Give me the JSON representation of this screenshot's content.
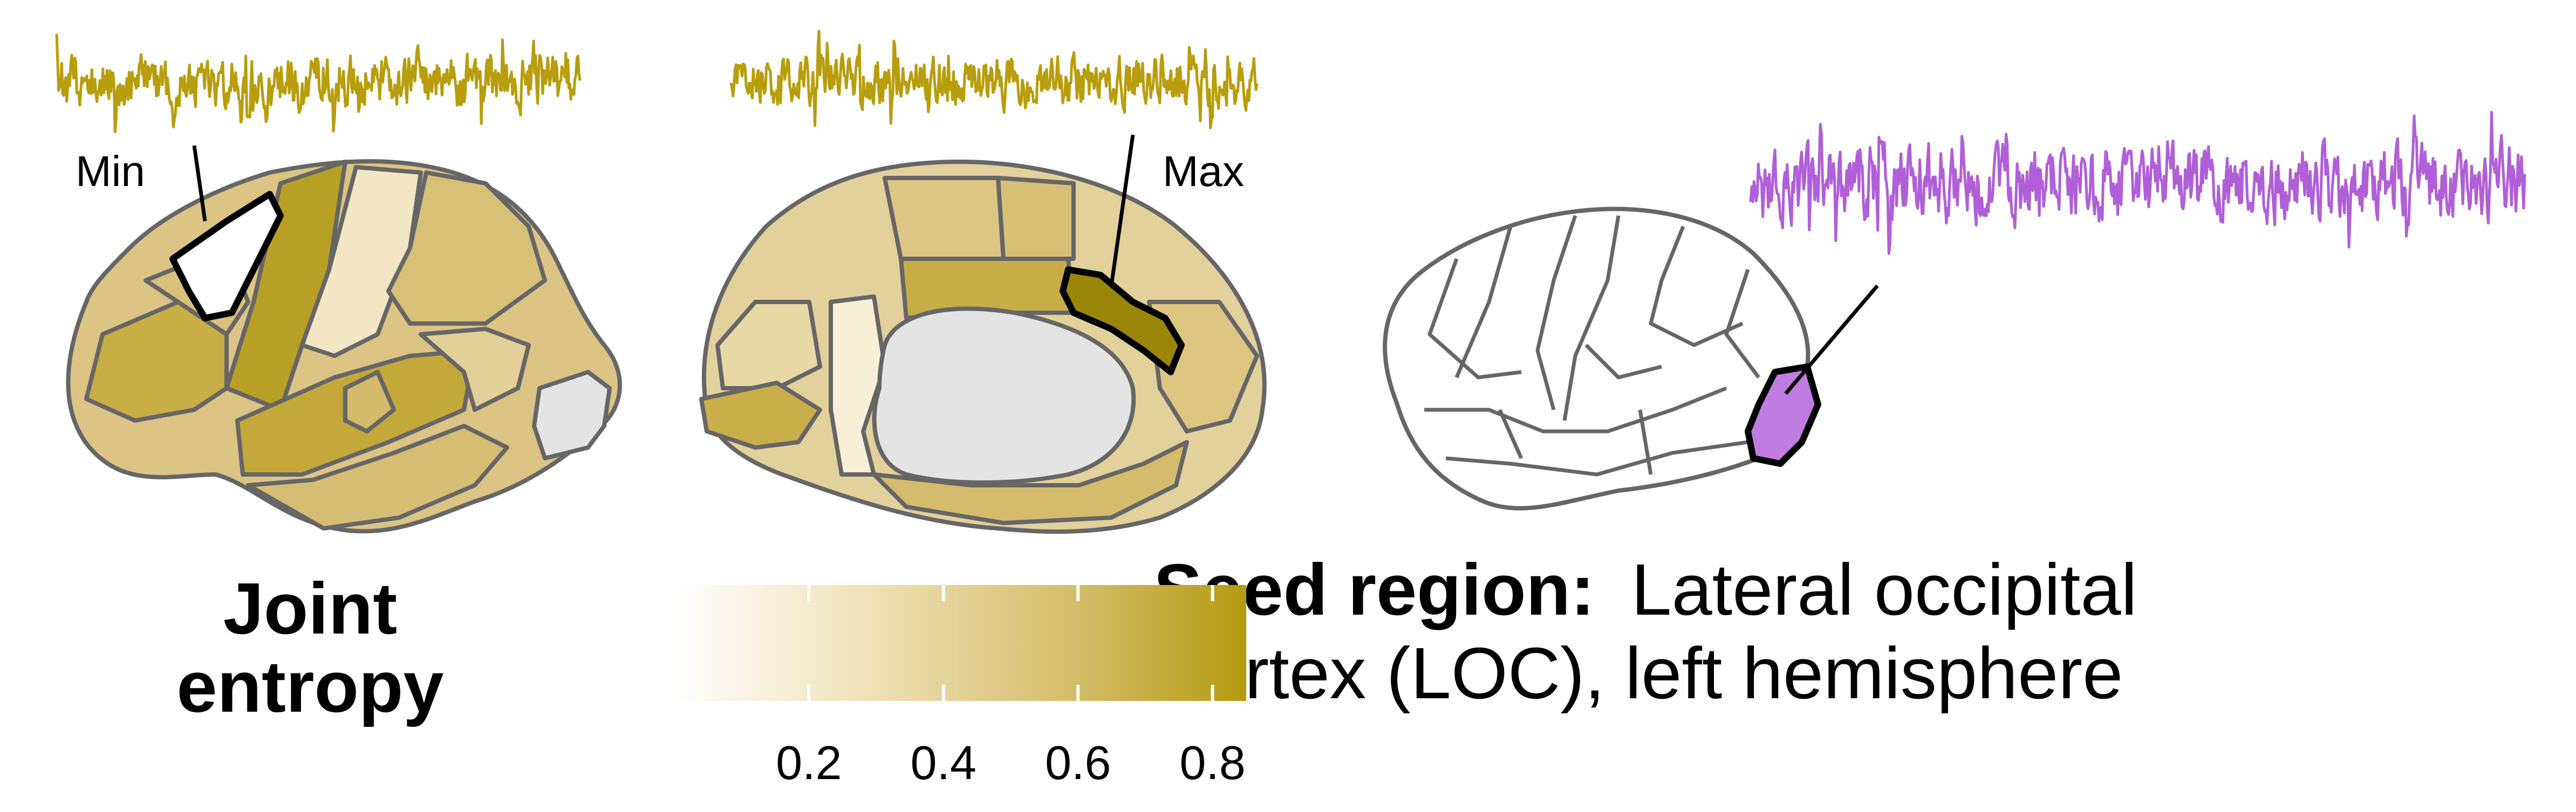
{
  "panel_left": {
    "title_line1": "Joint",
    "title_line2": "entropy",
    "min_label": "Min",
    "max_label": "Max"
  },
  "colorbar": {
    "ticks": [
      "0.2",
      "0.4",
      "0.6",
      "0.8"
    ],
    "tick_values": [
      0.2,
      0.4,
      0.6,
      0.8
    ],
    "range": [
      0.0,
      0.85
    ],
    "color_low": "#ffffff",
    "color_high": "#b59b0e"
  },
  "panel_right": {
    "title_bold": "Seed region:",
    "title_rest_line1": "Lateral occipital",
    "title_line2": "cortex (LOC), left hemisphere"
  },
  "colors": {
    "signal_gold": "#b89d0c",
    "signal_purple": "#b05fd8",
    "seed_fill": "#c07ce0",
    "medial_wall": "#e4e4e4",
    "outline": "#666666"
  }
}
